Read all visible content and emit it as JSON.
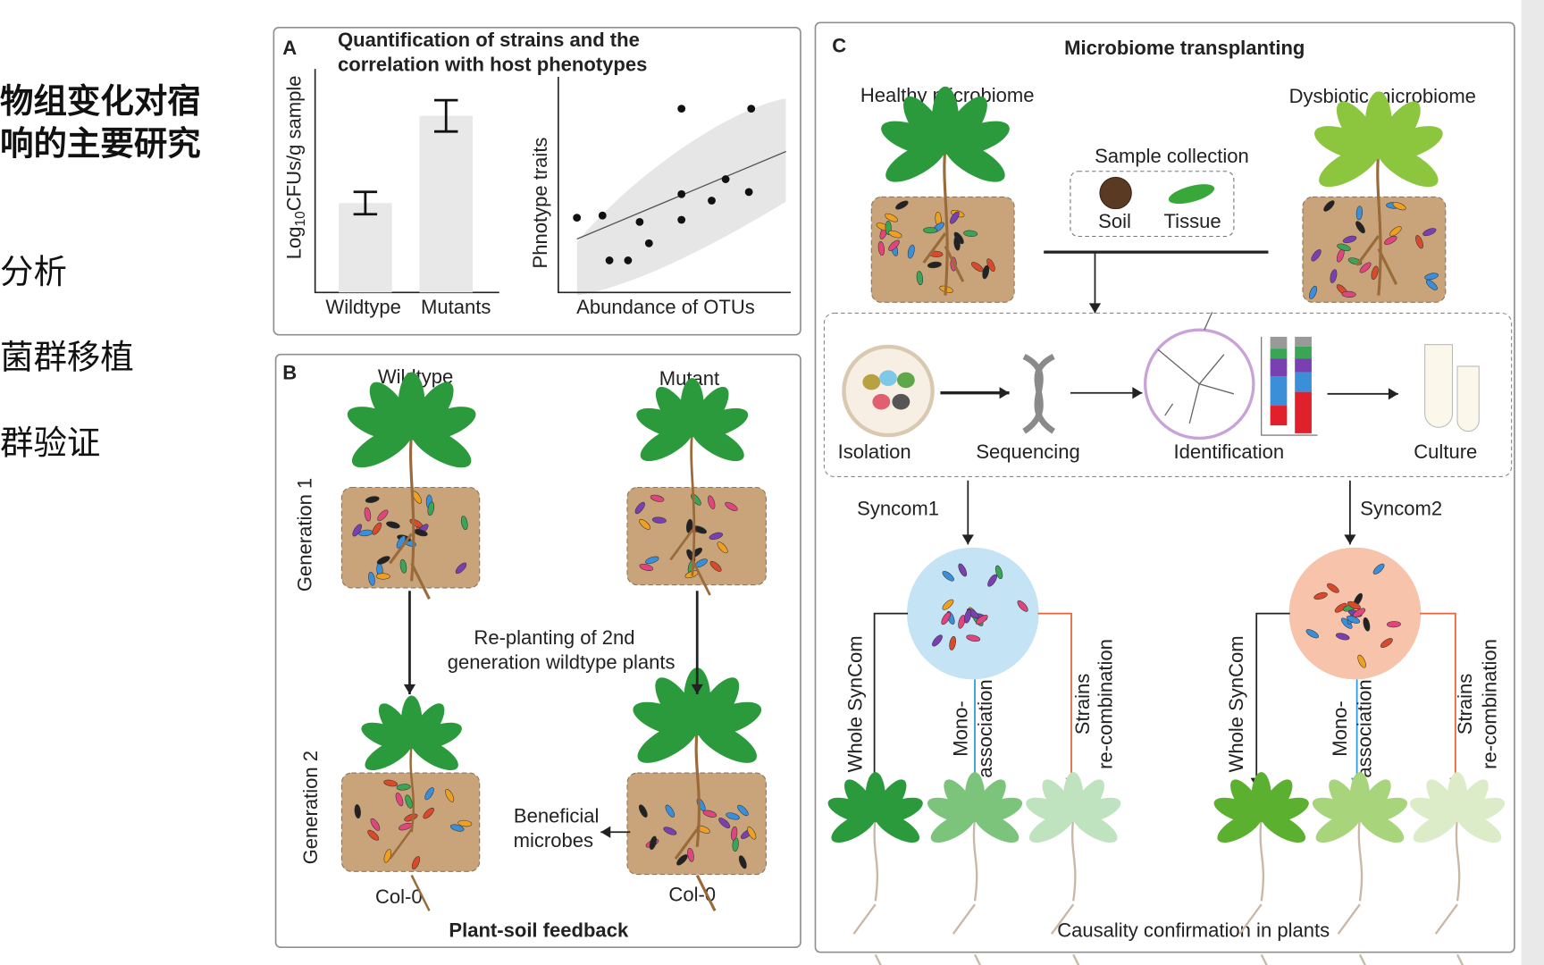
{
  "sidebar": {
    "heading": [
      "物组变化对宿",
      "响的主要研究"
    ],
    "items": [
      "分析",
      "菌群移植",
      "群验证"
    ]
  },
  "panel_a": {
    "letter": "A",
    "title": [
      "Quantification of strains and the",
      "correlation with host phenotypes"
    ],
    "bar_chart": {
      "type": "bar",
      "y_label": {
        "prefix": "Log",
        "subscript": "10",
        "suffix": "CFUs/g sample"
      },
      "categories": [
        "Wildtype",
        "Mutants"
      ],
      "values": [
        0.4,
        0.79
      ],
      "errors": [
        0.05,
        0.07
      ],
      "ylim": [
        0,
        1
      ],
      "color": "#e8e8e8"
    },
    "scatter": {
      "type": "scatter",
      "x_label": "Abundance of OTUs",
      "y_label": "Phnotype traits",
      "x": [
        0.08,
        0.19,
        0.22,
        0.3,
        0.35,
        0.39,
        0.53,
        0.53,
        0.53,
        0.66,
        0.72,
        0.82,
        0.83
      ],
      "values": [
        0.35,
        0.36,
        0.15,
        0.15,
        0.33,
        0.23,
        0.86,
        0.46,
        0.34,
        0.43,
        0.53,
        0.47,
        0.86
      ],
      "xlim": [
        0,
        1
      ],
      "ylim": [
        0,
        1
      ],
      "color": "#111111",
      "fit": {
        "x": [
          0.08,
          0.98
        ],
        "y": [
          0.25,
          0.66
        ]
      }
    }
  },
  "panel_b": {
    "letter": "B",
    "columns": [
      "Wildtype",
      "Mutant"
    ],
    "rows": [
      "Generation 1",
      "Generation 2"
    ],
    "replant": [
      "Re-planting of 2nd",
      "generation wildtype plants"
    ],
    "beneficial": [
      "Beneficial",
      "microbes"
    ],
    "genotypes": [
      "Col-0",
      "Col-0"
    ],
    "caption": "Plant-soil feedback"
  },
  "panel_c": {
    "letter": "C",
    "title": "Microbiome transplanting",
    "sources": [
      "Healthy microbiome",
      "Dysbiotic microbiome"
    ],
    "sample_collection": {
      "title": "Sample collection",
      "items": [
        "Soil",
        "Tissue"
      ]
    },
    "steps": [
      "Isolation",
      "Sequencing",
      "Identification",
      "Culture"
    ],
    "syncoms": [
      {
        "name": "Syncom1",
        "branches": [
          [
            "Whole SynCom"
          ],
          [
            "Mono-",
            "association"
          ],
          [
            "Strains",
            "re-combination"
          ]
        ]
      },
      {
        "name": "Syncom2",
        "branches": [
          [
            "Whole SynCom"
          ],
          [
            "Mono-",
            "association"
          ],
          [
            "Strains",
            "re-combination"
          ]
        ]
      }
    ],
    "caption": "Causality confirmation in plants"
  }
}
